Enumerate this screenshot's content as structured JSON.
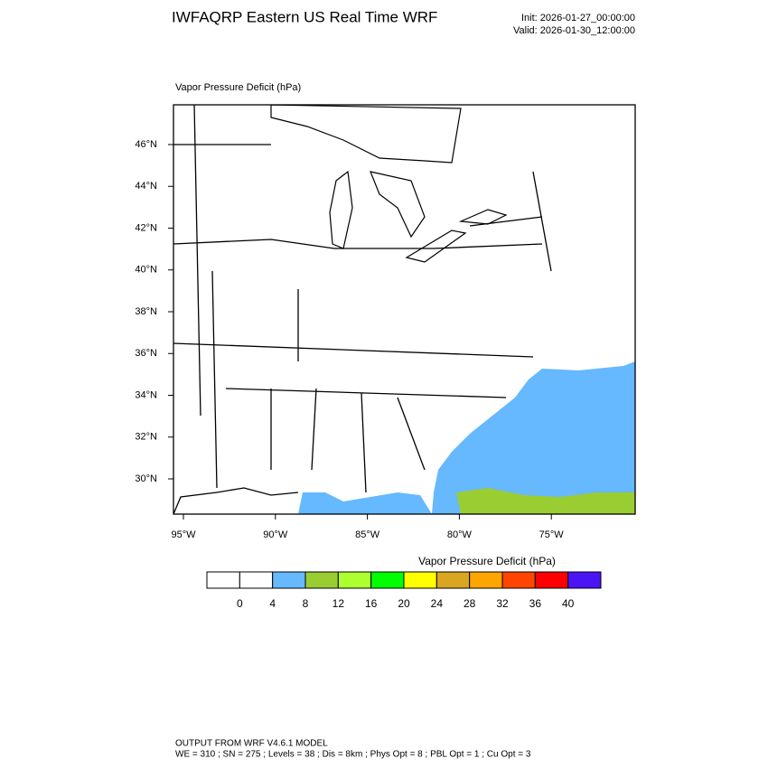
{
  "header": {
    "title": "IWFAQRP Eastern US Real Time WRF",
    "init": "Init: 2026-01-27_00:00:00",
    "valid": "Valid: 2026-01-30_12:00:00"
  },
  "map": {
    "subtitle": "Vapor Pressure Deficit   (hPa)",
    "lat_labels": [
      "46°N",
      "44°N",
      "42°N",
      "40°N",
      "38°N",
      "36°N",
      "34°N",
      "32°N",
      "30°N"
    ],
    "lon_labels": [
      "95°W",
      "90°W",
      "85°W",
      "80°W",
      "75°W"
    ]
  },
  "colorbar": {
    "title": "Vapor Pressure Deficit  (hPa)",
    "colors": [
      "#ffffff",
      "#ffffff",
      "#66b8ff",
      "#9acd32",
      "#adff2f",
      "#00ff00",
      "#ffff00",
      "#daa520",
      "#ffa500",
      "#ff4500",
      "#ff0000",
      "#4a14f5"
    ],
    "labels": [
      0,
      4,
      8,
      12,
      16,
      20,
      24,
      28,
      32,
      36,
      40
    ]
  },
  "footer": {
    "line1": "OUTPUT FROM WRF V4.6.1 MODEL",
    "line2": "WE = 310 ; SN = 275 ; Levels = 38 ; Dis = 8km ; Phys Opt = 8 ; PBL Opt = 1 ; Cu Opt = 3"
  }
}
